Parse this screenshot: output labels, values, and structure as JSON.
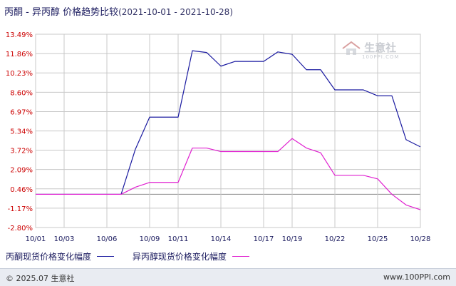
{
  "title": {
    "main": "丙酮 - 异丙醇 价格趋势比较",
    "range": "(2021-10-01 - 2021-10-28)"
  },
  "watermark": {
    "logo_text": "生意社",
    "url": "100PPI.COM"
  },
  "footer": {
    "copyright": "© 2025.07 生意社",
    "site": "www.100PPI.com"
  },
  "colors": {
    "series1": "#1a1aa0",
    "series2": "#e020d0",
    "grid": "#c8c8c8",
    "axis": "#333333"
  },
  "chart_data": {
    "type": "line",
    "x_range": [
      "10/01",
      "10/28"
    ],
    "x_ticks": [
      "10/01",
      "10/03",
      "10/06",
      "10/09",
      "10/11",
      "10/14",
      "10/17",
      "10/19",
      "10/22",
      "10/25",
      "10/28"
    ],
    "y_ticks": [
      "13.49%",
      "11.86%",
      "10.23%",
      "8.60%",
      "6.97%",
      "5.34%",
      "3.72%",
      "2.09%",
      "0.46%",
      "-1.17%",
      "-2.80%"
    ],
    "ylim": [
      -2.8,
      13.49
    ],
    "grid": true,
    "series": [
      {
        "name": "丙酮现货价格变化幅度",
        "points": [
          [
            "10/01",
            0.0
          ],
          [
            "10/07",
            0.0
          ],
          [
            "10/08",
            3.8
          ],
          [
            "10/09",
            6.5
          ],
          [
            "10/11",
            6.5
          ],
          [
            "10/12",
            12.1
          ],
          [
            "10/13",
            11.95
          ],
          [
            "10/14",
            10.8
          ],
          [
            "10/15",
            11.2
          ],
          [
            "10/17",
            11.2
          ],
          [
            "10/18",
            12.0
          ],
          [
            "10/19",
            11.8
          ],
          [
            "10/20",
            10.5
          ],
          [
            "10/21",
            10.5
          ],
          [
            "10/22",
            8.8
          ],
          [
            "10/24",
            8.8
          ],
          [
            "10/25",
            8.3
          ],
          [
            "10/26",
            8.3
          ],
          [
            "10/27",
            4.6
          ],
          [
            "10/28",
            4.0
          ]
        ]
      },
      {
        "name": "异丙醇现货价格变化幅度",
        "points": [
          [
            "10/01",
            0.0
          ],
          [
            "10/07",
            0.0
          ],
          [
            "10/08",
            0.6
          ],
          [
            "10/09",
            1.0
          ],
          [
            "10/11",
            1.0
          ],
          [
            "10/12",
            3.9
          ],
          [
            "10/13",
            3.9
          ],
          [
            "10/14",
            3.6
          ],
          [
            "10/17",
            3.6
          ],
          [
            "10/18",
            3.6
          ],
          [
            "10/19",
            4.7
          ],
          [
            "10/20",
            3.9
          ],
          [
            "10/21",
            3.5
          ],
          [
            "10/22",
            1.6
          ],
          [
            "10/24",
            1.6
          ],
          [
            "10/25",
            1.3
          ],
          [
            "10/26",
            0.0
          ],
          [
            "10/27",
            -0.9
          ],
          [
            "10/28",
            -1.3
          ]
        ]
      }
    ]
  }
}
